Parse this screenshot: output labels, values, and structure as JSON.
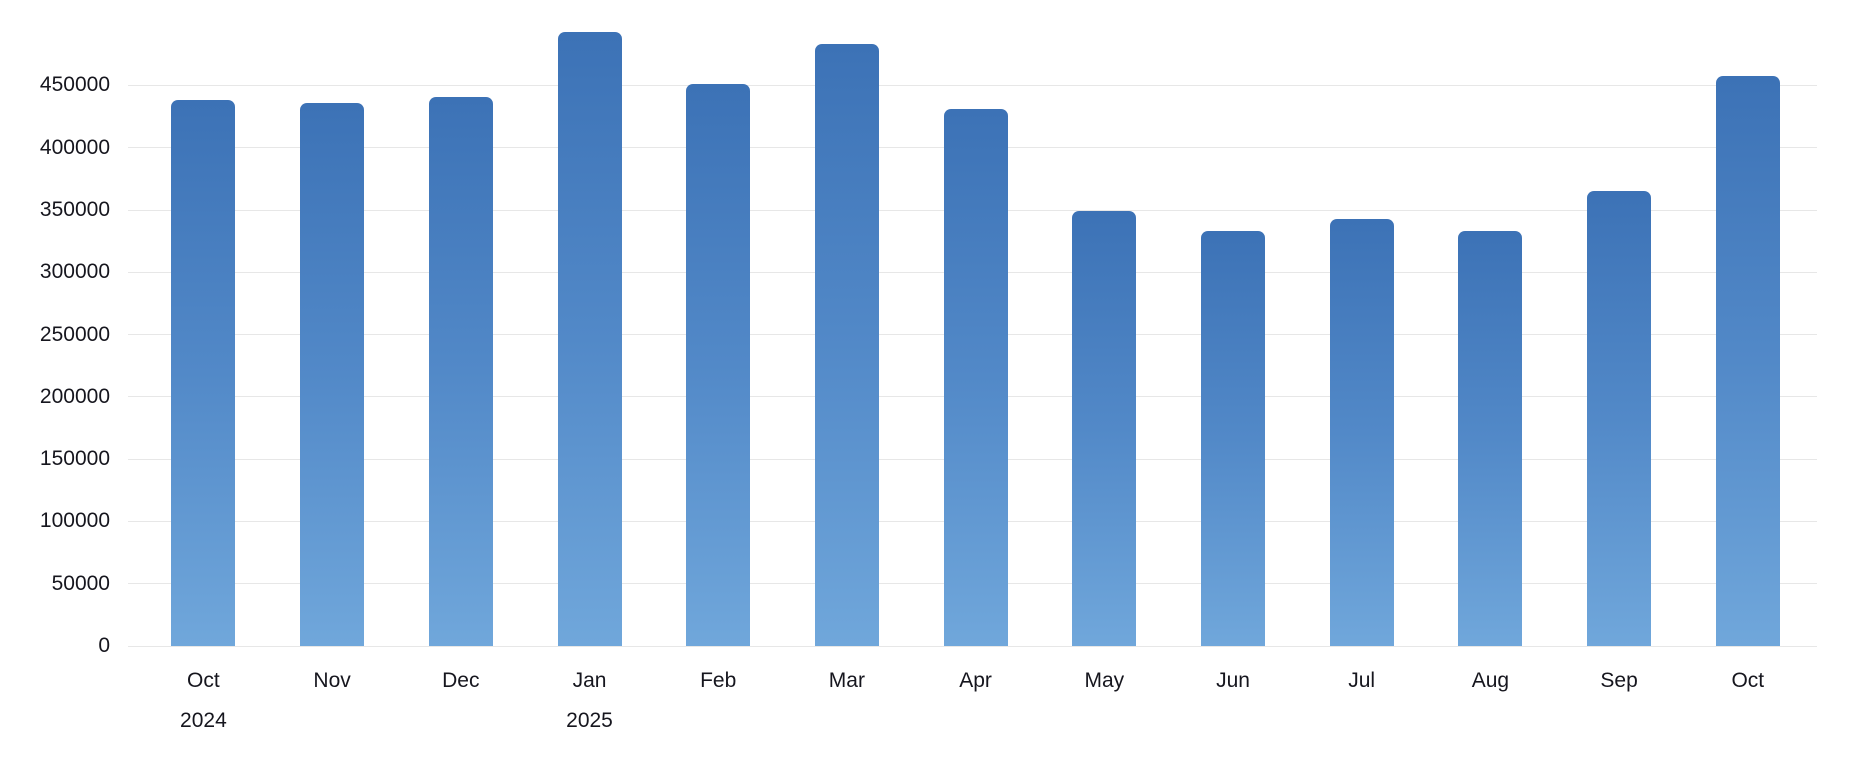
{
  "chart_data": {
    "type": "bar",
    "categories": [
      "Oct",
      "Nov",
      "Dec",
      "Jan",
      "Feb",
      "Mar",
      "Apr",
      "May",
      "Jun",
      "Jul",
      "Aug",
      "Sep",
      "Oct"
    ],
    "year_markers": [
      {
        "index": 0,
        "label": "2024"
      },
      {
        "index": 3,
        "label": "2025"
      }
    ],
    "values": [
      438000,
      436000,
      441000,
      493000,
      451000,
      483000,
      431000,
      349000,
      333000,
      343000,
      333000,
      365000,
      458000
    ],
    "title": "",
    "xlabel": "",
    "ylabel": "",
    "ylim": [
      0,
      500000
    ],
    "yticks": [
      0,
      50000,
      100000,
      150000,
      200000,
      250000,
      300000,
      350000,
      400000,
      450000
    ],
    "grid": true,
    "legend_position": "none",
    "colors": {
      "bar_gradient_top": "#3c72b6",
      "bar_gradient_middle": "#5289c8",
      "bar_gradient_bottom": "#70a7db",
      "gridline": "#e7e7e7",
      "axis_text": "#16161e",
      "background": "#ffffff"
    }
  }
}
